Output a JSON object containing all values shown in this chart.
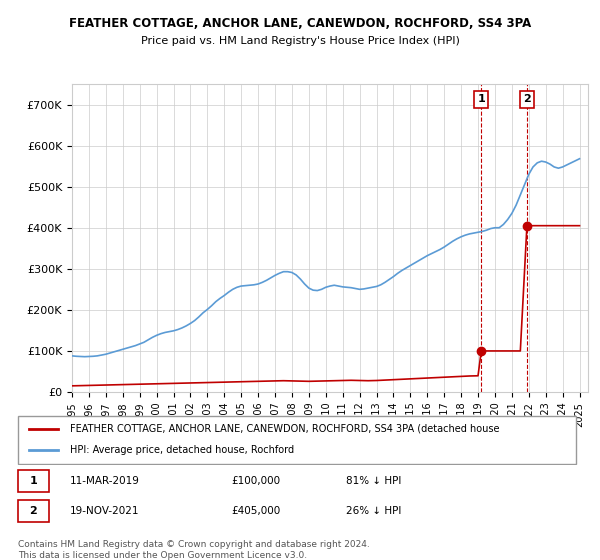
{
  "title": "FEATHER COTTAGE, ANCHOR LANE, CANEWDON, ROCHFORD, SS4 3PA",
  "subtitle": "Price paid vs. HM Land Registry's House Price Index (HPI)",
  "ylabel": "",
  "xlim_start": 1995.0,
  "xlim_end": 2025.5,
  "ylim": [
    0,
    750000
  ],
  "hpi_color": "#5b9bd5",
  "price_color": "#c00000",
  "grid_color": "#cccccc",
  "background_color": "#ffffff",
  "purchase1_date": 2019.19,
  "purchase1_price": 100000,
  "purchase2_date": 2021.89,
  "purchase2_price": 405000,
  "legend_text1": "FEATHER COTTAGE, ANCHOR LANE, CANEWDON, ROCHFORD, SS4 3PA (detached house",
  "legend_text2": "HPI: Average price, detached house, Rochford",
  "note_text": "Contains HM Land Registry data © Crown copyright and database right 2024.\nThis data is licensed under the Open Government Licence v3.0.",
  "table_row1": "11-MAR-2019    £100,000    81% ↓ HPI",
  "table_row2": "19-NOV-2021    £405,000    26% ↓ HPI",
  "hpi_data_x": [
    1995.0,
    1995.25,
    1995.5,
    1995.75,
    1996.0,
    1996.25,
    1996.5,
    1996.75,
    1997.0,
    1997.25,
    1997.5,
    1997.75,
    1998.0,
    1998.25,
    1998.5,
    1998.75,
    1999.0,
    1999.25,
    1999.5,
    1999.75,
    2000.0,
    2000.25,
    2000.5,
    2000.75,
    2001.0,
    2001.25,
    2001.5,
    2001.75,
    2002.0,
    2002.25,
    2002.5,
    2002.75,
    2003.0,
    2003.25,
    2003.5,
    2003.75,
    2004.0,
    2004.25,
    2004.5,
    2004.75,
    2005.0,
    2005.25,
    2005.5,
    2005.75,
    2006.0,
    2006.25,
    2006.5,
    2006.75,
    2007.0,
    2007.25,
    2007.5,
    2007.75,
    2008.0,
    2008.25,
    2008.5,
    2008.75,
    2009.0,
    2009.25,
    2009.5,
    2009.75,
    2010.0,
    2010.25,
    2010.5,
    2010.75,
    2011.0,
    2011.25,
    2011.5,
    2011.75,
    2012.0,
    2012.25,
    2012.5,
    2012.75,
    2013.0,
    2013.25,
    2013.5,
    2013.75,
    2014.0,
    2014.25,
    2014.5,
    2014.75,
    2015.0,
    2015.25,
    2015.5,
    2015.75,
    2016.0,
    2016.25,
    2016.5,
    2016.75,
    2017.0,
    2017.25,
    2017.5,
    2017.75,
    2018.0,
    2018.25,
    2018.5,
    2018.75,
    2019.0,
    2019.25,
    2019.5,
    2019.75,
    2020.0,
    2020.25,
    2020.5,
    2020.75,
    2021.0,
    2021.25,
    2021.5,
    2021.75,
    2022.0,
    2022.25,
    2022.5,
    2022.75,
    2023.0,
    2023.25,
    2023.5,
    2023.75,
    2024.0,
    2024.25,
    2024.5,
    2024.75,
    2025.0
  ],
  "hpi_data_y": [
    88000,
    87000,
    86500,
    86000,
    86500,
    87000,
    88000,
    90000,
    92000,
    95000,
    98000,
    101000,
    104000,
    107000,
    110000,
    113000,
    117000,
    121000,
    127000,
    133000,
    138000,
    142000,
    145000,
    147000,
    149000,
    152000,
    156000,
    161000,
    167000,
    174000,
    183000,
    193000,
    201000,
    210000,
    220000,
    228000,
    235000,
    243000,
    250000,
    255000,
    258000,
    259000,
    260000,
    261000,
    263000,
    267000,
    272000,
    278000,
    284000,
    289000,
    293000,
    293000,
    291000,
    285000,
    275000,
    263000,
    253000,
    248000,
    247000,
    250000,
    255000,
    258000,
    260000,
    258000,
    256000,
    255000,
    254000,
    252000,
    250000,
    251000,
    253000,
    255000,
    257000,
    261000,
    267000,
    274000,
    281000,
    289000,
    296000,
    302000,
    308000,
    314000,
    320000,
    326000,
    332000,
    337000,
    342000,
    347000,
    353000,
    360000,
    367000,
    373000,
    378000,
    382000,
    385000,
    387000,
    389000,
    391000,
    394000,
    398000,
    400000,
    400000,
    408000,
    420000,
    435000,
    455000,
    480000,
    505000,
    530000,
    548000,
    558000,
    562000,
    560000,
    555000,
    548000,
    545000,
    548000,
    553000,
    558000,
    563000,
    568000
  ],
  "price_data_x": [
    1995.0,
    1995.5,
    1996.0,
    1996.5,
    1997.0,
    1997.5,
    1998.0,
    1998.5,
    1999.0,
    1999.5,
    2000.0,
    2000.5,
    2001.0,
    2001.5,
    2002.0,
    2002.5,
    2003.0,
    2003.5,
    2004.0,
    2004.5,
    2005.0,
    2005.5,
    2006.0,
    2006.5,
    2007.0,
    2007.5,
    2008.0,
    2008.5,
    2009.0,
    2009.5,
    2010.0,
    2010.5,
    2011.0,
    2011.5,
    2012.0,
    2012.5,
    2013.0,
    2013.5,
    2014.0,
    2014.5,
    2015.0,
    2015.5,
    2016.0,
    2016.5,
    2017.0,
    2017.5,
    2018.0,
    2018.5,
    2019.0,
    2019.19,
    2019.5,
    2020.0,
    2020.5,
    2021.0,
    2021.5,
    2021.89,
    2022.0,
    2022.5,
    2023.0,
    2023.5,
    2024.0,
    2024.5,
    2025.0
  ],
  "price_data_y": [
    15000,
    15500,
    16000,
    16500,
    17000,
    17500,
    18000,
    18500,
    19000,
    19500,
    20000,
    20500,
    21000,
    21500,
    22000,
    22500,
    23000,
    23500,
    24000,
    24500,
    25000,
    25500,
    26000,
    26500,
    27000,
    27500,
    27000,
    26500,
    26000,
    26500,
    27000,
    27500,
    28000,
    28500,
    28000,
    27500,
    28000,
    29000,
    30000,
    31000,
    32000,
    33000,
    34000,
    35000,
    36000,
    37000,
    38000,
    39000,
    39500,
    100000,
    100000,
    100000,
    100000,
    100000,
    100000,
    405000,
    405000,
    405000,
    405000,
    405000,
    405000,
    405000,
    405000
  ]
}
